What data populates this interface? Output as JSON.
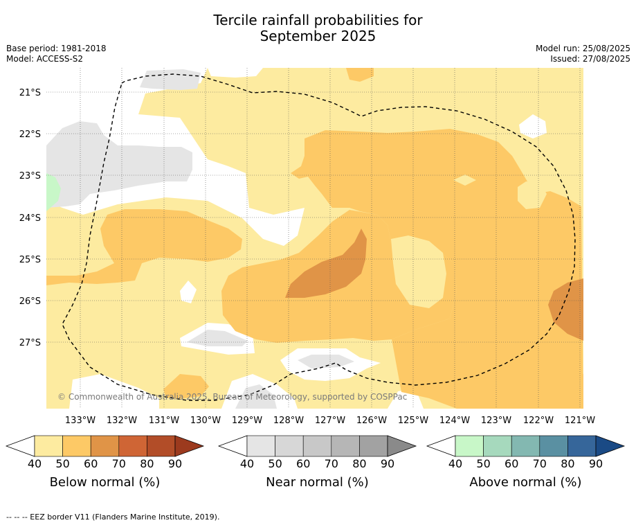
{
  "title_line1": "Tercile rainfall probabilities for",
  "title_line2": "September 2025",
  "meta": {
    "base_period": "Base period: 1981-2018",
    "model": "Model: ACCESS-S2",
    "model_run": "Model run: 25/08/2025",
    "issued": "Issued: 27/08/2025"
  },
  "map": {
    "lat_labels": [
      "21°S",
      "22°S",
      "23°S",
      "24°S",
      "25°S",
      "26°S",
      "27°S"
    ],
    "lon_labels": [
      "133°W",
      "132°W",
      "131°W",
      "130°W",
      "129°W",
      "128°W",
      "127°W",
      "126°W",
      "125°W",
      "124°W",
      "123°W",
      "122°W",
      "121°W"
    ],
    "copyright": "© Commonwealth of Australia 2025, Bureau of Meteorology, supported by COSPPac",
    "colors": {
      "below_40": "#fdeba0",
      "below_50": "#fdc966",
      "below_60": "#e09447",
      "near_40": "#e5e5e5",
      "above_40": "#c8f7c8",
      "land_white": "#ffffff"
    }
  },
  "colorbars": [
    {
      "label": "Below normal (%)",
      "ticks": [
        "40",
        "50",
        "60",
        "70",
        "80",
        "90"
      ],
      "colors": [
        "#fdeba0",
        "#fdc966",
        "#e09447",
        "#cf6535",
        "#b24d28",
        "#9c3a1e"
      ]
    },
    {
      "label": "Near normal (%)",
      "ticks": [
        "40",
        "50",
        "60",
        "70",
        "80",
        "90"
      ],
      "colors": [
        "#e5e5e5",
        "#d7d7d7",
        "#c8c8c8",
        "#b6b6b6",
        "#a2a2a2",
        "#8a8a8a"
      ]
    },
    {
      "label": "Above normal (%)",
      "ticks": [
        "40",
        "50",
        "60",
        "70",
        "80",
        "90"
      ],
      "colors": [
        "#c8f7c8",
        "#a6d9bd",
        "#83b8b1",
        "#5a90a2",
        "#36669a",
        "#1a4a85"
      ]
    }
  ],
  "footer": "--  --  -- EEZ border V11 (Flanders Marine Institute, 2019).",
  "chart_data": {
    "type": "heatmap",
    "title": "Tercile rainfall probabilities for September 2025",
    "xlabel": "",
    "ylabel": "",
    "xlim": [
      "133.8°W",
      "120.9°W"
    ],
    "ylim": [
      "28.6°S",
      "20.4°S"
    ],
    "categories": [
      "Below normal",
      "Near normal",
      "Above normal"
    ],
    "levels": [
      40,
      50,
      60,
      70,
      80,
      90
    ],
    "grid": true,
    "regions": [
      {
        "category": "Below normal",
        "range": "40-50",
        "description": "dominant"
      },
      {
        "category": "Below normal",
        "range": "50-60",
        "description": "central and eastern band"
      },
      {
        "category": "Below normal",
        "range": "60-70",
        "description": "patches near 126.5°W 25.5°S and 121°W 26°S"
      },
      {
        "category": "Near normal",
        "range": "40-50",
        "description": "northwest"
      },
      {
        "category": "Above normal",
        "range": "40-50",
        "description": "far west edge near 23.5°S"
      }
    ]
  }
}
